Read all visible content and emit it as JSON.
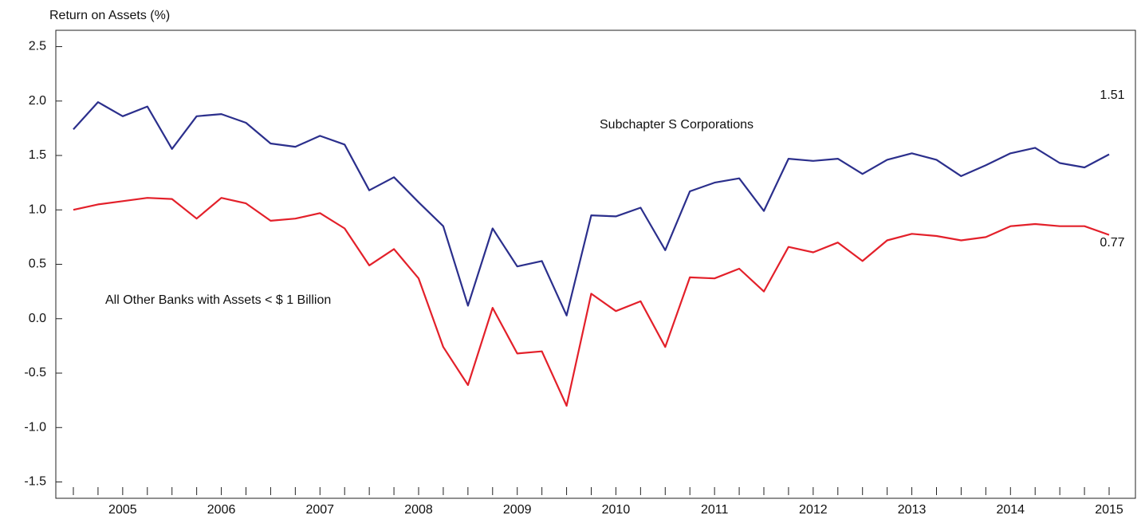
{
  "chart_data": {
    "type": "line",
    "y_axis_label": "Return on Assets (%)",
    "categories": [
      null,
      null,
      "2005",
      null,
      null,
      null,
      "2006",
      null,
      null,
      null,
      "2007",
      null,
      null,
      null,
      "2008",
      null,
      null,
      null,
      "2009",
      null,
      null,
      null,
      "2010",
      null,
      null,
      null,
      "2011",
      null,
      null,
      null,
      "2012",
      null,
      null,
      null,
      "2013",
      null,
      null,
      null,
      "2014",
      null,
      null,
      null,
      "2015"
    ],
    "series": [
      {
        "name": "Subchapter S Corporations",
        "color": "#2b2f8c",
        "values": [
          1.74,
          1.99,
          1.86,
          1.95,
          1.56,
          1.86,
          1.88,
          1.8,
          1.61,
          1.58,
          1.68,
          1.6,
          1.18,
          1.3,
          1.07,
          0.85,
          0.12,
          0.83,
          0.48,
          0.53,
          0.03,
          0.95,
          0.94,
          1.02,
          0.63,
          1.17,
          1.25,
          1.29,
          0.99,
          1.47,
          1.45,
          1.47,
          1.33,
          1.46,
          1.52,
          1.46,
          1.31,
          1.41,
          1.52,
          1.57,
          1.43,
          1.39,
          1.51
        ]
      },
      {
        "name": "All Other Banks with Assets < $ 1 Billion",
        "color": "#e3202a",
        "values": [
          1.0,
          1.05,
          1.08,
          1.11,
          1.1,
          0.92,
          1.11,
          1.06,
          0.9,
          0.92,
          0.97,
          0.83,
          0.49,
          0.64,
          0.37,
          -0.26,
          -0.61,
          0.1,
          -0.32,
          -0.3,
          -0.8,
          0.23,
          0.07,
          0.16,
          -0.26,
          0.38,
          0.37,
          0.46,
          0.25,
          0.66,
          0.61,
          0.7,
          0.53,
          0.72,
          0.78,
          0.76,
          0.72,
          0.75,
          0.85,
          0.87,
          0.85,
          0.85,
          0.77
        ]
      }
    ],
    "ylim": [
      -1.65,
      2.65
    ],
    "yticks": [
      -1.5,
      {
        "value": -1.0,
        "label": "-1.0"
      },
      -0.5,
      {
        "value": 0,
        "label": "0.0"
      },
      0.5,
      {
        "value": 1.0,
        "label": "1.0"
      },
      1.5,
      {
        "value": 2.0,
        "label": "2.0"
      },
      2.5
    ],
    "grid": false
  }
}
